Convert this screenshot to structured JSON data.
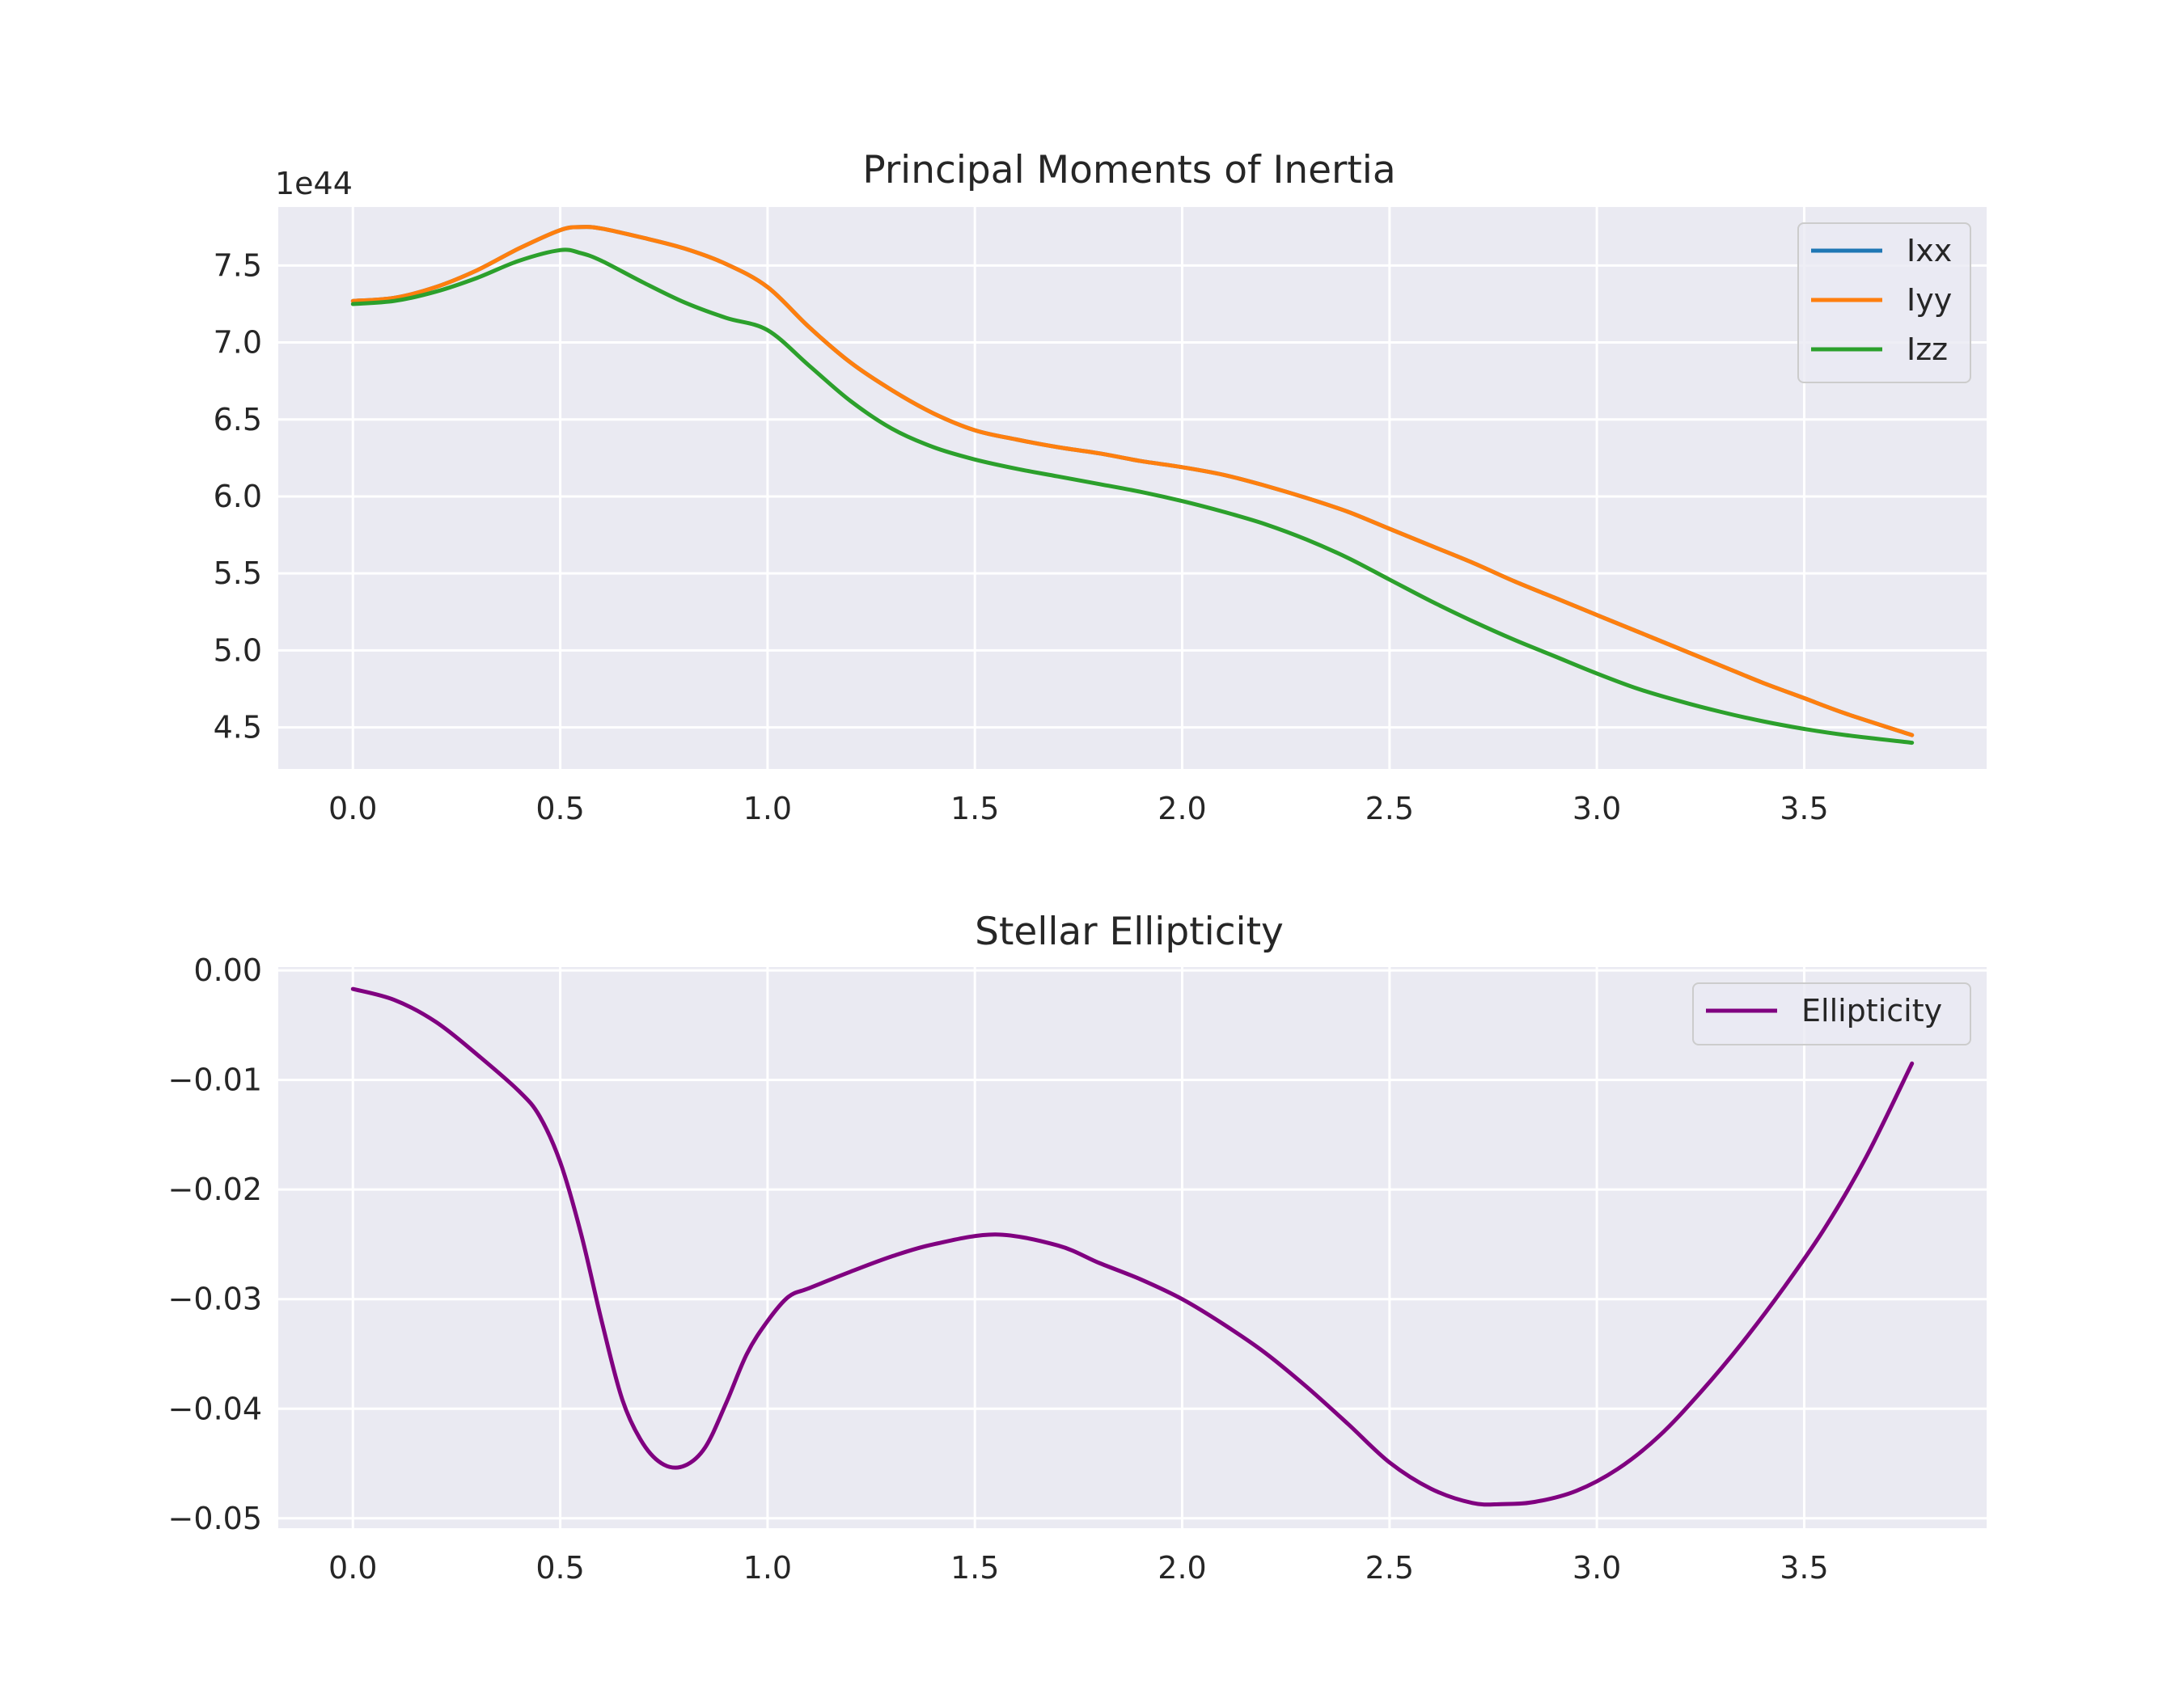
{
  "chart_data": [
    {
      "type": "line",
      "title": "Principal Moments of Inertia",
      "xlabel": "",
      "ylabel": "",
      "offset_label": "1e44",
      "xlim": [
        -0.18,
        3.94
      ],
      "ylim": [
        4.23,
        7.88
      ],
      "xticks": [
        0.0,
        0.5,
        1.0,
        1.5,
        2.0,
        2.5,
        3.0,
        3.5
      ],
      "xtick_labels": [
        "0.0",
        "0.5",
        "1.0",
        "1.5",
        "2.0",
        "2.5",
        "3.0",
        "3.5"
      ],
      "yticks": [
        4.5,
        5.0,
        5.5,
        6.0,
        6.5,
        7.0,
        7.5
      ],
      "ytick_labels": [
        "4.5",
        "5.0",
        "5.5",
        "6.0",
        "6.5",
        "7.0",
        "7.5"
      ],
      "grid": true,
      "legend_position": "top-right",
      "x": [
        0.0,
        0.1,
        0.2,
        0.3,
        0.4,
        0.5,
        0.55,
        0.6,
        0.7,
        0.8,
        0.9,
        1.0,
        1.1,
        1.2,
        1.3,
        1.4,
        1.5,
        1.6,
        1.7,
        1.8,
        1.9,
        2.0,
        2.1,
        2.2,
        2.3,
        2.4,
        2.5,
        2.6,
        2.7,
        2.8,
        2.9,
        3.0,
        3.1,
        3.2,
        3.3,
        3.4,
        3.5,
        3.6,
        3.76
      ],
      "series": [
        {
          "name": "Ixx",
          "color": "#1f77b4",
          "values": [
            7.27,
            7.29,
            7.36,
            7.47,
            7.61,
            7.73,
            7.75,
            7.74,
            7.68,
            7.61,
            7.51,
            7.36,
            7.1,
            6.87,
            6.69,
            6.54,
            6.43,
            6.37,
            6.32,
            6.28,
            6.23,
            6.19,
            6.14,
            6.07,
            5.99,
            5.9,
            5.79,
            5.68,
            5.57,
            5.45,
            5.34,
            5.23,
            5.12,
            5.01,
            4.9,
            4.79,
            4.69,
            4.59,
            4.45
          ]
        },
        {
          "name": "Iyy",
          "color": "#ff7f0e",
          "values": [
            7.27,
            7.29,
            7.36,
            7.47,
            7.61,
            7.73,
            7.75,
            7.74,
            7.68,
            7.61,
            7.51,
            7.36,
            7.1,
            6.87,
            6.69,
            6.54,
            6.43,
            6.37,
            6.32,
            6.28,
            6.23,
            6.19,
            6.14,
            6.07,
            5.99,
            5.9,
            5.79,
            5.68,
            5.57,
            5.45,
            5.34,
            5.23,
            5.12,
            5.01,
            4.9,
            4.79,
            4.69,
            4.59,
            4.45
          ]
        },
        {
          "name": "Izz",
          "color": "#2ca02c",
          "values": [
            7.25,
            7.27,
            7.33,
            7.42,
            7.53,
            7.6,
            7.58,
            7.53,
            7.39,
            7.26,
            7.16,
            7.08,
            6.85,
            6.62,
            6.44,
            6.32,
            6.24,
            6.18,
            6.13,
            6.08,
            6.03,
            5.97,
            5.9,
            5.82,
            5.72,
            5.6,
            5.46,
            5.32,
            5.19,
            5.07,
            4.96,
            4.85,
            4.75,
            4.67,
            4.6,
            4.54,
            4.49,
            4.45,
            4.4
          ]
        }
      ]
    },
    {
      "type": "line",
      "title": "Stellar Ellipticity",
      "xlabel": "",
      "ylabel": "",
      "xlim": [
        -0.18,
        3.94
      ],
      "ylim": [
        -0.0509,
        0.0003
      ],
      "xticks": [
        0.0,
        0.5,
        1.0,
        1.5,
        2.0,
        2.5,
        3.0,
        3.5
      ],
      "xtick_labels": [
        "0.0",
        "0.5",
        "1.0",
        "1.5",
        "2.0",
        "2.5",
        "3.0",
        "3.5"
      ],
      "yticks": [
        0.0,
        -0.01,
        -0.02,
        -0.03,
        -0.04,
        -0.05
      ],
      "ytick_labels": [
        "0.00",
        "−0.01",
        "−0.02",
        "−0.03",
        "−0.04",
        "−0.05"
      ],
      "grid": true,
      "legend_position": "top-right",
      "x": [
        0.0,
        0.1,
        0.2,
        0.3,
        0.4,
        0.45,
        0.5,
        0.55,
        0.6,
        0.65,
        0.7,
        0.75,
        0.8,
        0.85,
        0.9,
        0.95,
        1.0,
        1.05,
        1.1,
        1.2,
        1.3,
        1.4,
        1.55,
        1.7,
        1.8,
        1.9,
        2.0,
        2.1,
        2.2,
        2.3,
        2.4,
        2.5,
        2.6,
        2.7,
        2.77,
        2.85,
        2.95,
        3.05,
        3.15,
        3.25,
        3.35,
        3.45,
        3.55,
        3.65,
        3.76
      ],
      "series": [
        {
          "name": "Ellipticity",
          "color": "#800080",
          "values": [
            -0.0017,
            -0.0027,
            -0.0047,
            -0.0077,
            -0.011,
            -0.0133,
            -0.0175,
            -0.024,
            -0.032,
            -0.0392,
            -0.0432,
            -0.0451,
            -0.0452,
            -0.0435,
            -0.0395,
            -0.035,
            -0.032,
            -0.0298,
            -0.029,
            -0.0275,
            -0.0261,
            -0.025,
            -0.0241,
            -0.0251,
            -0.0267,
            -0.0282,
            -0.03,
            -0.0323,
            -0.0349,
            -0.038,
            -0.0414,
            -0.0449,
            -0.0473,
            -0.0486,
            -0.0487,
            -0.0485,
            -0.0475,
            -0.0455,
            -0.0425,
            -0.0385,
            -0.034,
            -0.029,
            -0.0235,
            -0.017,
            -0.0085
          ]
        }
      ]
    }
  ]
}
